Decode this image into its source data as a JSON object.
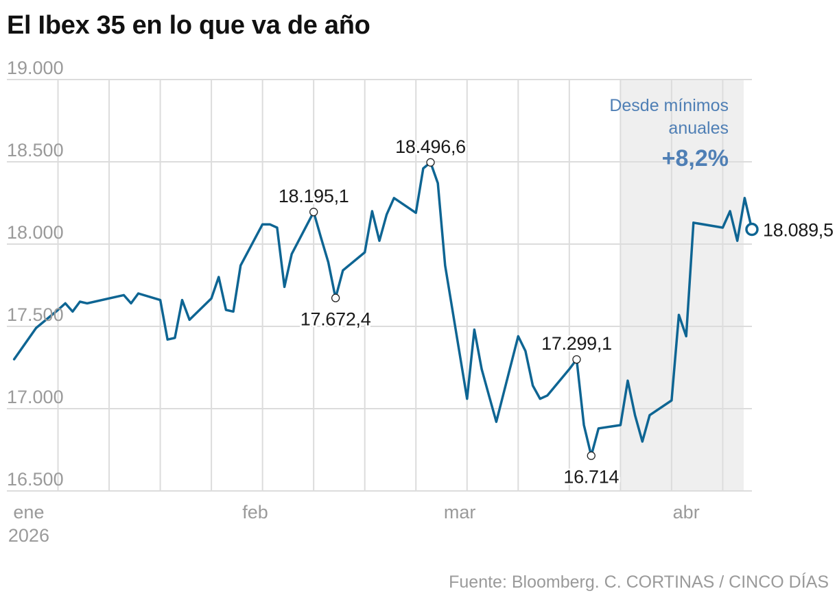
{
  "title": "El Ibex 35 en lo que va de año",
  "source": "Fuente: Bloomberg. C. CORTINAS / CINCO DÍAS",
  "colors": {
    "line": "#0e6593",
    "grid": "#dcdcdc",
    "axis_text": "#9a9a9a",
    "annotation_blue": "#4f7fb5",
    "shade": "#efefef"
  },
  "chart_data": {
    "type": "line",
    "title": "El Ibex 35 en lo que va de año",
    "xlabel": "",
    "ylabel": "",
    "ylim": [
      16500,
      19000
    ],
    "yticks": [
      16500,
      17000,
      17500,
      18000,
      18500,
      19000
    ],
    "ytick_labels": [
      "16.500",
      "17.000",
      "17.500",
      "18.000",
      "18.500",
      "19.000"
    ],
    "xlim": [
      "2025-12-29",
      "2026-04-10"
    ],
    "month_labels": [
      {
        "date": "2026-01-01",
        "label": "ene",
        "sublabel": "2026"
      },
      {
        "date": "2026-02-01",
        "label": "feb",
        "sublabel": ""
      },
      {
        "date": "2026-03-01",
        "label": "mar",
        "sublabel": ""
      },
      {
        "date": "2026-04-01",
        "label": "abr",
        "sublabel": ""
      }
    ],
    "grid": true,
    "shaded_region": {
      "from": "2026-03-23",
      "to": "2026-04-10"
    },
    "shaded_annotation": {
      "line1": "Desde mínimos",
      "line2": "anuales",
      "value": "+8,2%"
    },
    "series": [
      {
        "x": [
          "2025-12-30",
          "2026-01-02",
          "2026-01-05",
          "2026-01-06",
          "2026-01-07",
          "2026-01-08",
          "2026-01-09",
          "2026-01-12",
          "2026-01-13",
          "2026-01-14",
          "2026-01-15",
          "2026-01-16",
          "2026-01-19",
          "2026-01-20",
          "2026-01-21",
          "2026-01-22",
          "2026-01-23",
          "2026-01-26",
          "2026-01-27",
          "2026-01-28",
          "2026-01-29",
          "2026-01-30",
          "2026-02-02",
          "2026-02-03",
          "2026-02-04",
          "2026-02-05",
          "2026-02-06",
          "2026-02-09",
          "2026-02-10",
          "2026-02-11",
          "2026-02-12",
          "2026-02-13",
          "2026-02-16",
          "2026-02-17",
          "2026-02-18",
          "2026-02-19",
          "2026-02-20",
          "2026-02-23",
          "2026-02-24",
          "2026-02-25",
          "2026-02-26",
          "2026-02-27",
          "2026-03-02",
          "2026-03-03",
          "2026-03-04",
          "2026-03-05",
          "2026-03-06",
          "2026-03-09",
          "2026-03-10",
          "2026-03-11",
          "2026-03-12",
          "2026-03-13",
          "2026-03-16",
          "2026-03-17",
          "2026-03-18",
          "2026-03-19",
          "2026-03-20",
          "2026-03-23",
          "2026-03-24",
          "2026-03-25",
          "2026-03-26",
          "2026-03-27",
          "2026-03-30",
          "2026-03-31",
          "2026-04-01",
          "2026-04-02",
          "2026-04-06",
          "2026-04-07",
          "2026-04-08",
          "2026-04-09",
          "2026-04-10"
        ],
        "y": [
          17300,
          17490,
          17600,
          17640,
          17590,
          17650,
          17640,
          17670,
          17680,
          17690,
          17640,
          17700,
          17660,
          17420,
          17430,
          17660,
          17540,
          17670,
          17800,
          17600,
          17590,
          17870,
          18120,
          18120,
          18100,
          17740,
          17940,
          18195.1,
          18040,
          17890,
          17672.4,
          17840,
          17950,
          18200,
          18020,
          18180,
          18280,
          18190,
          18460,
          18496.6,
          18370,
          17870,
          17060,
          17480,
          17240,
          17080,
          16920,
          17440,
          17350,
          17140,
          17060,
          17080,
          17240,
          17299.1,
          16900,
          16714,
          16880,
          16900,
          17170,
          16960,
          16800,
          16960,
          17050,
          17570,
          17440,
          18130,
          18100,
          18200,
          18020,
          18280,
          18089.5
        ],
        "line_width": 3.5
      }
    ],
    "annotations": [
      {
        "x": "2026-02-09",
        "y": 18195.1,
        "label": "18.195,1",
        "position": "above"
      },
      {
        "x": "2026-02-12",
        "y": 17672.4,
        "label": "17.672,4",
        "position": "below"
      },
      {
        "x": "2026-02-25",
        "y": 18496.6,
        "label": "18.496,6",
        "position": "above"
      },
      {
        "x": "2026-03-17",
        "y": 17299.1,
        "label": "17.299,1",
        "position": "above"
      },
      {
        "x": "2026-03-19",
        "y": 16714,
        "label": "16.714",
        "position": "below"
      },
      {
        "x": "2026-04-10",
        "y": 18089.5,
        "label": "18.089,5",
        "position": "right",
        "emphasis": true
      }
    ]
  }
}
